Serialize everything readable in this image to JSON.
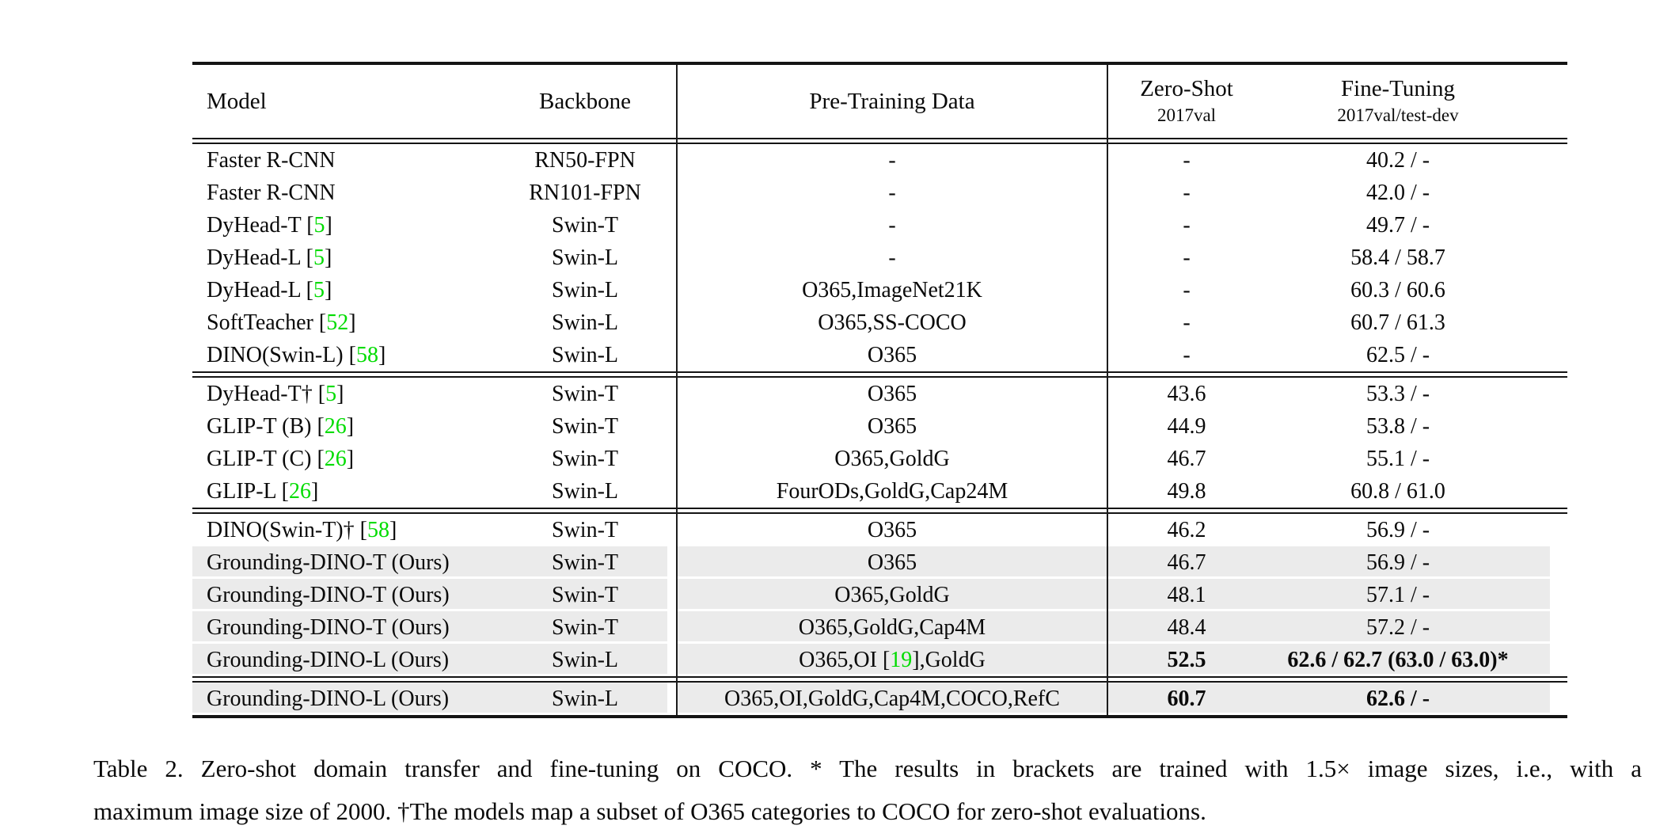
{
  "table": {
    "headers": {
      "model": "Model",
      "backbone": "Backbone",
      "pretrain": "Pre-Training Data",
      "zeroshot": {
        "label": "Zero-Shot",
        "sub": "2017val"
      },
      "finetune": {
        "label": "Fine-Tuning",
        "sub": "2017val/test-dev"
      }
    },
    "sections": [
      {
        "rows": [
          {
            "model": "Faster R-CNN",
            "backbone": "RN50-FPN",
            "pretrain": "-",
            "zeroshot": "-",
            "finetune": "40.2 / -",
            "highlight": false,
            "bold": false
          },
          {
            "model": "Faster R-CNN",
            "backbone": "RN101-FPN",
            "pretrain": "-",
            "zeroshot": "-",
            "finetune": "42.0 / -",
            "highlight": false,
            "bold": false
          },
          {
            "model": "DyHead-T [[5]]",
            "backbone": "Swin-T",
            "pretrain": "-",
            "zeroshot": "-",
            "finetune": "49.7 / -",
            "highlight": false,
            "bold": false
          },
          {
            "model": "DyHead-L [[5]]",
            "backbone": "Swin-L",
            "pretrain": "-",
            "zeroshot": "-",
            "finetune": "58.4 / 58.7",
            "highlight": false,
            "bold": false
          },
          {
            "model": "DyHead-L [[5]]",
            "backbone": "Swin-L",
            "pretrain": "O365,ImageNet21K",
            "zeroshot": "-",
            "finetune": "60.3 / 60.6",
            "highlight": false,
            "bold": false
          },
          {
            "model": "SoftTeacher [[52]]",
            "backbone": "Swin-L",
            "pretrain": "O365,SS-COCO",
            "zeroshot": "-",
            "finetune": "60.7 / 61.3",
            "highlight": false,
            "bold": false
          },
          {
            "model": "DINO(Swin-L) [[58]]",
            "backbone": "Swin-L",
            "pretrain": "O365",
            "zeroshot": "-",
            "finetune": "62.5 / -",
            "highlight": false,
            "bold": false
          }
        ]
      },
      {
        "rows": [
          {
            "model": "DyHead-T† [[5]]",
            "backbone": "Swin-T",
            "pretrain": "O365",
            "zeroshot": "43.6",
            "finetune": "53.3 / -",
            "highlight": false,
            "bold": false
          },
          {
            "model": "GLIP-T (B) [[26]]",
            "backbone": "Swin-T",
            "pretrain": "O365",
            "zeroshot": "44.9",
            "finetune": "53.8 / -",
            "highlight": false,
            "bold": false
          },
          {
            "model": "GLIP-T (C) [[26]]",
            "backbone": "Swin-T",
            "pretrain": "O365,GoldG",
            "zeroshot": "46.7",
            "finetune": "55.1 / -",
            "highlight": false,
            "bold": false
          },
          {
            "model": "GLIP-L [[26]]",
            "backbone": "Swin-L",
            "pretrain": "FourODs,GoldG,Cap24M",
            "zeroshot": "49.8",
            "finetune": "60.8 / 61.0",
            "highlight": false,
            "bold": false
          }
        ]
      },
      {
        "rows": [
          {
            "model": "DINO(Swin-T)† [[58]]",
            "backbone": "Swin-T",
            "pretrain": "O365",
            "zeroshot": "46.2",
            "finetune": "56.9 / -",
            "highlight": false,
            "bold": false
          },
          {
            "model": "Grounding-DINO-T (Ours)",
            "backbone": "Swin-T",
            "pretrain": "O365",
            "zeroshot": "46.7",
            "finetune": "56.9 / -",
            "highlight": true,
            "bold": false
          },
          {
            "model": "Grounding-DINO-T (Ours)",
            "backbone": "Swin-T",
            "pretrain": "O365,GoldG",
            "zeroshot": "48.1",
            "finetune": "57.1 / -",
            "highlight": true,
            "bold": false
          },
          {
            "model": "Grounding-DINO-T (Ours)",
            "backbone": "Swin-T",
            "pretrain": "O365,GoldG,Cap4M",
            "zeroshot": "48.4",
            "finetune": "57.2 / -",
            "highlight": true,
            "bold": false
          },
          {
            "model": "Grounding-DINO-L (Ours)",
            "backbone": "Swin-L",
            "pretrain": "O365,OI [[19]],GoldG",
            "zeroshot": "52.5",
            "finetune": "62.6 / 62.7 (63.0 / 63.0)*",
            "highlight": true,
            "bold": true
          }
        ]
      },
      {
        "rows": [
          {
            "model": "Grounding-DINO-L (Ours)",
            "backbone": "Swin-L",
            "pretrain": "O365,OI,GoldG,Cap4M,COCO,RefC",
            "zeroshot": "60.7",
            "finetune": "62.6 / -",
            "highlight": true,
            "bold": true
          }
        ]
      }
    ]
  },
  "caption": {
    "line1": "Table 2.  Zero-shot domain transfer and fine-tuning on COCO. * The results in brackets are trained with 1.5× image sizes, i.e., with a",
    "line2": "maximum image size of 2000. †The models map a subset of O365 categories to COCO for zero-shot evaluations."
  },
  "colors": {
    "citation_green": "#00DC00",
    "row_highlight": "#ebebeb",
    "rule_black": "#141414"
  }
}
